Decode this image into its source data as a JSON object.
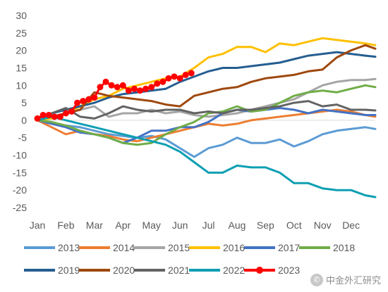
{
  "chart_data": {
    "type": "line",
    "title": "",
    "xlabel": "",
    "ylabel": "",
    "ylim": [
      -25,
      30
    ],
    "yticks": [
      30,
      25,
      20,
      15,
      10,
      5,
      0,
      -5,
      -10,
      -15,
      -20,
      -25
    ],
    "x_range": [
      0,
      11.85
    ],
    "categories": [
      "Jan",
      "Feb",
      "Mar",
      "Apr",
      "May",
      "Jun",
      "Jul",
      "Aug",
      "Sep",
      "Oct",
      "Nov",
      "Dec"
    ],
    "grid": false,
    "legend_position": "bottom",
    "series": [
      {
        "name": "2013",
        "color": "#5b9bd5",
        "x": [
          0,
          0.5,
          1,
          1.5,
          2,
          2.5,
          3,
          3.5,
          4,
          4.5,
          5,
          5.5,
          6,
          6.5,
          7,
          7.5,
          8,
          8.5,
          9,
          9.5,
          10,
          10.5,
          11,
          11.5,
          11.85
        ],
        "y": [
          0,
          -1,
          -1.5,
          -2,
          -3,
          -4,
          -4.5,
          -5,
          -4.5,
          -5.5,
          -8,
          -10.5,
          -8,
          -7,
          -5,
          -6.5,
          -6.5,
          -5.5,
          -7.5,
          -6,
          -4,
          -3,
          -2.5,
          -2,
          -2.5
        ]
      },
      {
        "name": "2014",
        "color": "#ed7d31",
        "x": [
          0,
          0.5,
          1,
          1.5,
          2,
          2.5,
          3,
          3.5,
          4,
          4.5,
          5,
          5.5,
          6,
          6.5,
          7,
          7.5,
          8,
          8.5,
          9,
          9.5,
          10,
          10.5,
          11,
          11.5,
          11.85
        ],
        "y": [
          0,
          -2,
          -4,
          -3,
          -4,
          -4.5,
          -5.5,
          -6,
          -5,
          -4,
          -3,
          -2,
          -1,
          -1.5,
          -1,
          0,
          0.5,
          1,
          1.5,
          2,
          2.5,
          3,
          2.5,
          1.5,
          1
        ]
      },
      {
        "name": "2015",
        "color": "#a5a5a5",
        "x": [
          0,
          0.5,
          1,
          1.5,
          2,
          2.5,
          3,
          3.5,
          4,
          4.5,
          5,
          5.5,
          6,
          6.5,
          7,
          7.5,
          8,
          8.5,
          9,
          9.5,
          10,
          10.5,
          11,
          11.5,
          11.85
        ],
        "y": [
          0,
          1,
          2,
          3,
          4,
          1,
          2,
          2,
          3,
          2,
          2.5,
          1.5,
          1,
          1.5,
          2,
          3,
          4,
          5,
          6,
          8,
          10,
          11,
          11.5,
          11.5,
          11.8
        ]
      },
      {
        "name": "2016",
        "color": "#ffc000",
        "x": [
          0,
          0.5,
          1,
          1.5,
          2,
          2.5,
          3,
          3.5,
          4,
          4.5,
          5,
          5.5,
          6,
          6.5,
          7,
          7.5,
          8,
          8.5,
          9,
          9.5,
          10,
          10.5,
          11,
          11.5,
          11.85
        ],
        "y": [
          0,
          0.5,
          2,
          4,
          6,
          7,
          9,
          10,
          11,
          12,
          12.5,
          15,
          18,
          19,
          21,
          21,
          19.5,
          22,
          21.5,
          22.5,
          23.5,
          23,
          22.5,
          22,
          21.5
        ]
      },
      {
        "name": "2017",
        "color": "#4472c4",
        "x": [
          0,
          0.5,
          1,
          1.5,
          2,
          2.5,
          3,
          3.5,
          4,
          4.5,
          5,
          5.5,
          6,
          6.5,
          7,
          7.5,
          8,
          8.5,
          9,
          9.5,
          10,
          10.5,
          11,
          11.5,
          11.85
        ],
        "y": [
          0,
          -1,
          -2,
          -3.5,
          -4,
          -5,
          -6.5,
          -5,
          -3,
          -3,
          -2,
          -2,
          -0.5,
          2,
          3,
          2.5,
          3,
          3.5,
          3,
          2,
          3,
          2.5,
          2,
          1.5,
          1.5
        ]
      },
      {
        "name": "2018",
        "color": "#70ad47",
        "x": [
          0,
          0.5,
          1,
          1.5,
          2,
          2.5,
          3,
          3.5,
          4,
          4.5,
          5,
          5.5,
          6,
          6.5,
          7,
          7.5,
          8,
          8.5,
          9,
          9.5,
          10,
          10.5,
          11,
          11.5,
          11.85
        ],
        "y": [
          0,
          -0.5,
          -1.5,
          -3,
          -4,
          -5,
          -6.5,
          -7,
          -6.5,
          -4,
          -2,
          -0.5,
          2,
          2.5,
          4,
          2.5,
          3,
          5,
          7,
          8,
          8.5,
          8,
          9,
          10,
          9.5
        ]
      },
      {
        "name": "2019",
        "color": "#255e91",
        "x": [
          0,
          0.5,
          1,
          1.5,
          2,
          2.5,
          3,
          3.5,
          4,
          4.5,
          5,
          5.5,
          6,
          6.5,
          7,
          7.5,
          8,
          8.5,
          9,
          9.5,
          10,
          10.5,
          11,
          11.5,
          11.85
        ],
        "y": [
          0,
          2,
          3,
          4,
          5,
          6.5,
          7.5,
          8,
          8.5,
          9,
          11,
          12.5,
          14,
          15,
          15,
          15.5,
          16,
          16.5,
          17.5,
          18.5,
          19,
          19.5,
          19,
          18.5,
          18.2
        ]
      },
      {
        "name": "2020",
        "color": "#9e480e",
        "x": [
          0,
          0.5,
          1,
          1.5,
          2,
          2.5,
          3,
          3.5,
          4,
          4.5,
          5,
          5.5,
          6,
          6.5,
          7,
          7.5,
          8,
          8.5,
          9,
          9.5,
          10,
          10.5,
          11,
          11.5,
          11.85
        ],
        "y": [
          0,
          1,
          2,
          3,
          8,
          7,
          6.5,
          6,
          5.5,
          4.5,
          4,
          7,
          8,
          9,
          9.5,
          11,
          12,
          12.5,
          13,
          14,
          14.5,
          18,
          20,
          21.5,
          20.5
        ]
      },
      {
        "name": "2021",
        "color": "#636363",
        "x": [
          0,
          0.5,
          1,
          1.5,
          2,
          2.5,
          3,
          3.5,
          4,
          4.5,
          5,
          5.5,
          6,
          6.5,
          7,
          7.5,
          8,
          8.5,
          9,
          9.5,
          10,
          10.5,
          11,
          11.5,
          11.85
        ],
        "y": [
          0,
          2,
          3.5,
          1,
          0.5,
          2,
          4,
          3,
          2.5,
          3,
          3,
          2,
          2.5,
          2,
          3,
          3,
          3.5,
          4,
          5,
          5.5,
          4,
          4.5,
          3,
          3,
          2.8
        ]
      },
      {
        "name": "2022",
        "color": "#0e9fb3",
        "x": [
          0,
          0.5,
          1,
          1.5,
          2,
          2.5,
          3,
          3.5,
          4,
          4.5,
          5,
          5.5,
          6,
          6.5,
          7,
          7.5,
          8,
          8.5,
          9,
          9.5,
          10,
          10.5,
          11,
          11.5,
          11.85
        ],
        "y": [
          0,
          1,
          0,
          -1,
          -2,
          -3,
          -4,
          -5,
          -6,
          -7,
          -9,
          -12,
          -15,
          -15,
          -13,
          -13.5,
          -13.5,
          -15,
          -18,
          -18,
          -19.5,
          -20,
          -20,
          -21.5,
          -22
        ]
      },
      {
        "name": "2023",
        "color": "#ff0000",
        "marker": true,
        "x": [
          0,
          0.2,
          0.4,
          0.6,
          0.8,
          1,
          1.2,
          1.4,
          1.6,
          1.8,
          2,
          2.2,
          2.4,
          2.6,
          2.8,
          3,
          3.2,
          3.4,
          3.6,
          3.8,
          4,
          4.2,
          4.4,
          4.6,
          4.8,
          5,
          5.2,
          5.4
        ],
        "y": [
          0.5,
          1.5,
          1.5,
          1,
          1,
          2,
          2.5,
          5,
          5.5,
          6,
          6.5,
          9.5,
          11,
          10,
          9.5,
          10,
          8.5,
          9,
          8.5,
          9,
          9.5,
          10.5,
          11,
          12,
          12.5,
          12,
          13,
          13.5
        ]
      }
    ]
  },
  "legend": {
    "items": [
      "2013",
      "2014",
      "2015",
      "2016",
      "2017",
      "2018",
      "2019",
      "2020",
      "2021",
      "2022",
      "2023"
    ]
  },
  "watermark": {
    "text": "中金外汇研究",
    "icon": "wechat-icon"
  }
}
